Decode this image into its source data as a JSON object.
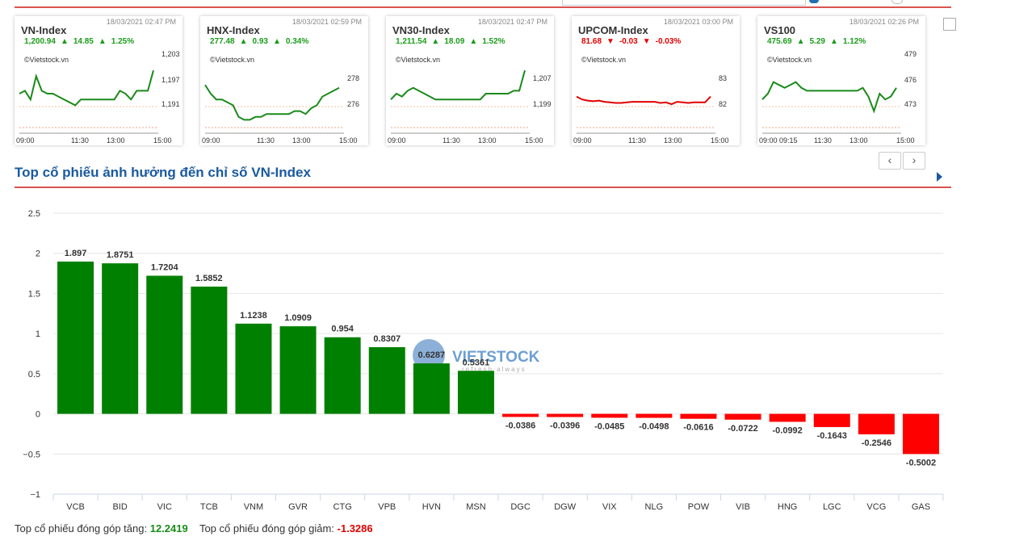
{
  "index_cards": [
    {
      "name": "VN-Index",
      "time": "18/03/2021 02:47 PM",
      "value": "1,200.94",
      "change": "14.85",
      "percent": "1.25%",
      "direction": "up",
      "copyright": "©Vietstock.vn",
      "y_ticks": [
        "1,203",
        "1,197",
        "1,191"
      ],
      "x_ticks": [
        "09:00",
        "11:30",
        "13:00",
        "15:00"
      ]
    },
    {
      "name": "HNX-Index",
      "time": "18/03/2021 02:59 PM",
      "value": "277.48",
      "change": "0.93",
      "percent": "0.34%",
      "direction": "up",
      "copyright": "©Vietstock.vn",
      "y_ticks": [
        "278",
        "276"
      ],
      "x_ticks": [
        "09:00",
        "11:30",
        "13:00",
        "15:00"
      ]
    },
    {
      "name": "VN30-Index",
      "time": "18/03/2021 02:47 PM",
      "value": "1,211.54",
      "change": "18.09",
      "percent": "1.52%",
      "direction": "up",
      "copyright": "©Vietstock.vn",
      "y_ticks": [
        "1,207",
        "1,199"
      ],
      "x_ticks": [
        "09:00",
        "11:30",
        "13:00",
        "15:00"
      ]
    },
    {
      "name": "UPCOM-Index",
      "time": "18/03/2021 03:00 PM",
      "value": "81.68",
      "change": "-0.03",
      "percent": "-0.03%",
      "direction": "down",
      "copyright": "©Vietstock.vn",
      "y_ticks": [
        "83",
        "82"
      ],
      "x_ticks": [
        "09:00",
        "11:30",
        "13:00",
        "15:00"
      ]
    },
    {
      "name": "VS100",
      "time": "18/03/2021 02:26 PM",
      "value": "475.69",
      "change": "5.29",
      "percent": "1.12%",
      "direction": "up",
      "copyright": "©Vietstock.vn",
      "y_ticks": [
        "479",
        "476",
        "473"
      ],
      "x_ticks": [
        "09:00 09:15",
        "11:30",
        "13:00",
        "15:00"
      ]
    }
  ],
  "section_title": "Top cổ phiếu ảnh hưởng đến chỉ số VN-Index",
  "nav": {
    "prev": "‹",
    "next": "›"
  },
  "watermark": {
    "brand": "VIETSTOCK",
    "tagline": "refresh always"
  },
  "chart_data": {
    "type": "bar",
    "categories": [
      "VCB",
      "BID",
      "VIC",
      "TCB",
      "VNM",
      "GVR",
      "CTG",
      "VPB",
      "HVN",
      "MSN",
      "DGC",
      "DGW",
      "VIX",
      "NLG",
      "POW",
      "VIB",
      "HNG",
      "LGC",
      "VCG",
      "GAS"
    ],
    "values": [
      1.897,
      1.8751,
      1.7204,
      1.5852,
      1.1238,
      1.0909,
      0.954,
      0.8307,
      0.6287,
      0.5361,
      -0.0386,
      -0.0396,
      -0.0485,
      -0.0498,
      -0.0616,
      -0.0722,
      -0.0992,
      -0.1643,
      -0.2546,
      -0.5002
    ],
    "value_labels": [
      "1.897",
      "1.8751",
      "1.7204",
      "1.5852",
      "1.1238",
      "1.0909",
      "0.954",
      "0.8307",
      "0.6287",
      "0.5361",
      "-0.0386",
      "-0.0396",
      "-0.0485",
      "-0.0498",
      "-0.0616",
      "-0.0722",
      "-0.0992",
      "-0.1643",
      "-0.2546",
      "-0.5002"
    ],
    "y_ticks": [
      "2.5",
      "2",
      "1.5",
      "1",
      "0.5",
      "0",
      "−0.5",
      "−1"
    ],
    "ylim": [
      -1,
      2.5
    ],
    "colors": {
      "positive": "#008000",
      "negative": "#ff0000"
    },
    "grid": true
  },
  "footer": {
    "up_label": "Top cổ phiếu đóng góp tăng:",
    "up_value": "12.2419",
    "down_label": "Top cổ phiếu đóng góp giảm:",
    "down_value": "-1.3286"
  }
}
